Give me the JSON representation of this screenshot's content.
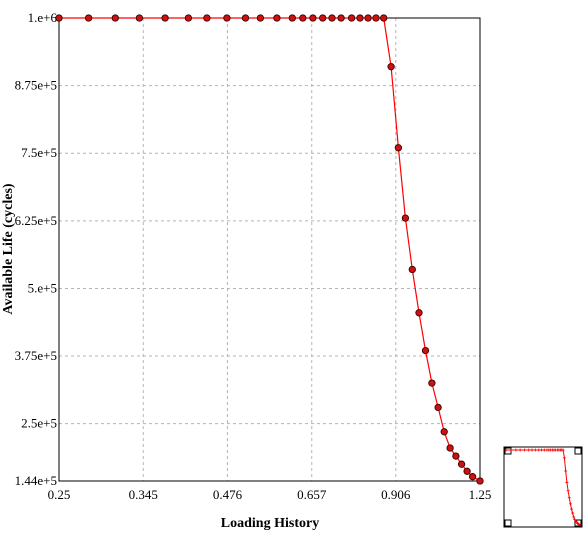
{
  "chart_data": {
    "type": "line",
    "title": "",
    "xlabel": "Loading History",
    "ylabel": "Available Life (cycles)",
    "x_ticks": [
      "0.25",
      "0.345",
      "0.476",
      "0.657",
      "0.906",
      "1.25"
    ],
    "y_ticks": [
      "1.44e+5",
      "2.5e+5",
      "3.75e+5",
      "5.e+5",
      "6.25e+5",
      "7.5e+5",
      "8.75e+5",
      "1.e+6"
    ],
    "y_tick_values": [
      144000,
      250000,
      375000,
      500000,
      625000,
      750000,
      875000,
      1000000
    ],
    "xlim": [
      0.25,
      1.25
    ],
    "ylim": [
      144000,
      1000000
    ],
    "x_scale": "log",
    "grid": true,
    "legend": "none",
    "series": [
      {
        "color": "#ff0000",
        "marker_color": "#cc1111",
        "x": [
          0.25,
          0.28,
          0.31,
          0.34,
          0.375,
          0.41,
          0.44,
          0.475,
          0.51,
          0.54,
          0.575,
          0.61,
          0.635,
          0.66,
          0.685,
          0.71,
          0.735,
          0.765,
          0.79,
          0.815,
          0.84,
          0.865,
          0.89,
          0.915,
          0.94,
          0.965,
          0.99,
          1.015,
          1.04,
          1.065,
          1.09,
          1.115,
          1.14,
          1.165,
          1.19,
          1.215,
          1.25
        ],
        "y": [
          1000000,
          1000000,
          1000000,
          1000000,
          1000000,
          1000000,
          1000000,
          1000000,
          1000000,
          1000000,
          1000000,
          1000000,
          1000000,
          1000000,
          1000000,
          1000000,
          1000000,
          1000000,
          1000000,
          1000000,
          1000000,
          1000000,
          910000,
          760000,
          630000,
          535000,
          455000,
          385000,
          325000,
          280000,
          235000,
          205000,
          190000,
          175000,
          162000,
          152000,
          144000
        ]
      }
    ]
  },
  "overview": {
    "series_color": "#ff0000"
  }
}
